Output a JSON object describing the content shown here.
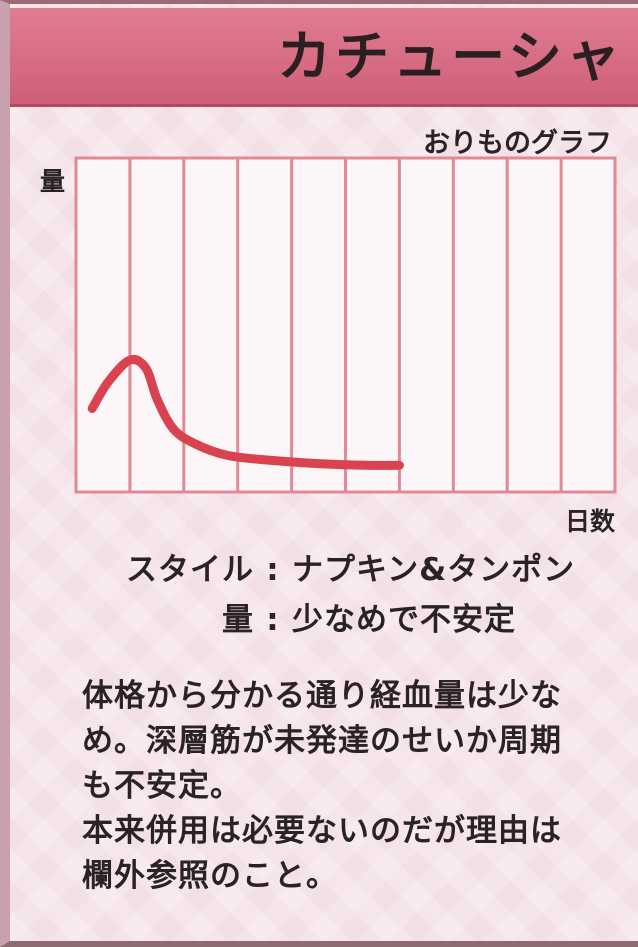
{
  "header": {
    "title": "カチューシャ",
    "color": "#d96a82"
  },
  "chart_data": {
    "type": "line",
    "title": "おりものグラフ",
    "ylabel": "量",
    "xlabel": "日数",
    "columns": 10,
    "grid": "vertical",
    "series": [
      {
        "x": [
          0.3,
          0.6,
          1.0,
          1.3,
          1.5,
          1.8,
          2.2,
          2.8,
          3.6,
          4.5,
          5.4,
          6.0
        ],
        "y": [
          2.5,
          3.3,
          3.95,
          3.7,
          2.8,
          1.9,
          1.45,
          1.1,
          0.95,
          0.85,
          0.8,
          0.8
        ]
      }
    ],
    "xlim": [
      0,
      10
    ],
    "ylim": [
      0,
      10
    ],
    "colors": {
      "line": "#d9424f",
      "grid": "#e08a95",
      "plot_bg": "#fdf6f8"
    }
  },
  "info": {
    "style_label": "スタイル",
    "style_value": "ナプキン&タンポン",
    "amount_label": "量",
    "amount_value": "少なめで不安定",
    "separator": ":"
  },
  "description": [
    "体格から分かる通り経血量は少な",
    "め。深層筋が未発達のせいか周期",
    "も不安定。",
    "本来併用は必要ないのだが理由は",
    "欄外参照のこと。"
  ]
}
